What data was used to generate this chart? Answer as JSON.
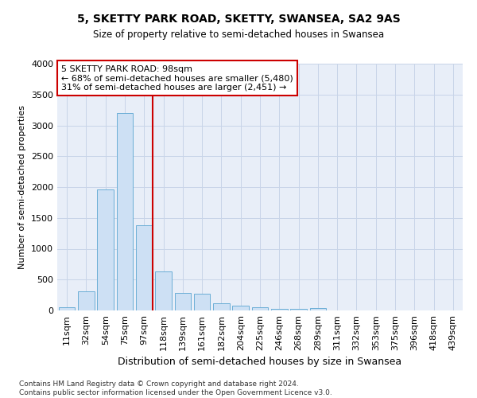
{
  "title1": "5, SKETTY PARK ROAD, SKETTY, SWANSEA, SA2 9AS",
  "title2": "Size of property relative to semi-detached houses in Swansea",
  "xlabel": "Distribution of semi-detached houses by size in Swansea",
  "ylabel": "Number of semi-detached properties",
  "footnote": "Contains HM Land Registry data © Crown copyright and database right 2024.\nContains public sector information licensed under the Open Government Licence v3.0.",
  "categories": [
    "11sqm",
    "32sqm",
    "54sqm",
    "75sqm",
    "97sqm",
    "118sqm",
    "139sqm",
    "161sqm",
    "182sqm",
    "204sqm",
    "225sqm",
    "246sqm",
    "268sqm",
    "289sqm",
    "311sqm",
    "332sqm",
    "353sqm",
    "375sqm",
    "396sqm",
    "418sqm",
    "439sqm"
  ],
  "values": [
    50,
    310,
    1960,
    3200,
    1380,
    635,
    280,
    270,
    115,
    80,
    50,
    30,
    20,
    40,
    5,
    3,
    2,
    2,
    1,
    1,
    1
  ],
  "bar_color": "#cde0f4",
  "bar_edge_color": "#6baed6",
  "vline_index": 4,
  "annotation_title": "5 SKETTY PARK ROAD: 98sqm",
  "annotation_line1": "← 68% of semi-detached houses are smaller (5,480)",
  "annotation_line2": "31% of semi-detached houses are larger (2,451) →",
  "vline_color": "#cc0000",
  "annotation_box_edge": "#cc0000",
  "ylim": [
    0,
    4000
  ],
  "yticks": [
    0,
    500,
    1000,
    1500,
    2000,
    2500,
    3000,
    3500,
    4000
  ],
  "grid_color": "#c8d4e8",
  "bg_color": "#e8eef8",
  "title1_fontsize": 10,
  "title2_fontsize": 8.5,
  "xlabel_fontsize": 9,
  "ylabel_fontsize": 8,
  "tick_fontsize": 8,
  "annot_fontsize": 8,
  "footnote_fontsize": 6.5
}
